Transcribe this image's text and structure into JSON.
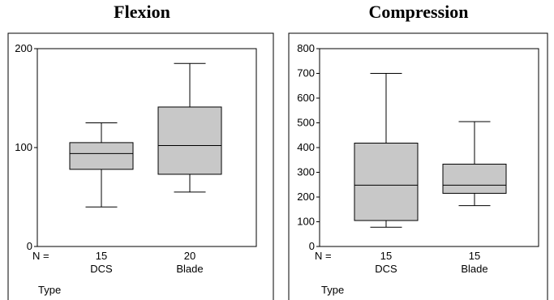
{
  "chart_data": [
    {
      "type": "box",
      "title": "Flexion",
      "xlabel": "Type",
      "n_label": "N =",
      "ylim": [
        0,
        200
      ],
      "yticks": [
        "0",
        "100",
        "200"
      ],
      "categories": [
        "DCS",
        "Blade"
      ],
      "n": [
        "15",
        "20"
      ],
      "boxes": [
        {
          "category": "DCS",
          "whisker_low": 40,
          "q1": 78,
          "median": 94,
          "q3": 105,
          "whisker_high": 125
        },
        {
          "category": "Blade",
          "whisker_low": 55,
          "q1": 73,
          "median": 102,
          "q3": 141,
          "whisker_high": 185
        }
      ],
      "box_color": "#c8c8c8"
    },
    {
      "type": "box",
      "title": "Compression",
      "xlabel": "Type",
      "n_label": "N =",
      "ylim": [
        0,
        800
      ],
      "yticks": [
        "0",
        "100",
        "200",
        "300",
        "400",
        "500",
        "600",
        "700",
        "800"
      ],
      "categories": [
        "DCS",
        "Blade"
      ],
      "n": [
        "15",
        "15"
      ],
      "boxes": [
        {
          "category": "DCS",
          "whisker_low": 78,
          "q1": 105,
          "median": 248,
          "q3": 418,
          "whisker_high": 700
        },
        {
          "category": "Blade",
          "whisker_low": 165,
          "q1": 215,
          "median": 248,
          "q3": 333,
          "whisker_high": 505
        }
      ],
      "box_color": "#c8c8c8"
    }
  ]
}
